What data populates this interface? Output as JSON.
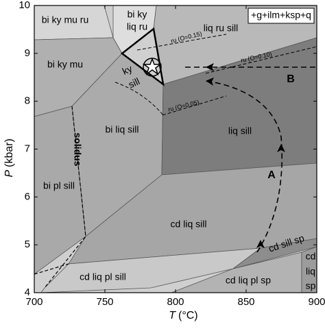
{
  "chart_data": {
    "type": "pseudosection",
    "x_label": {
      "symbol": "T",
      "unit": "(°C)"
    },
    "y_label": {
      "symbol": "P",
      "unit": "(kbar)"
    },
    "xlim": [
      700,
      900
    ],
    "xticks": [
      700,
      750,
      800,
      850,
      900
    ],
    "ylim": [
      4,
      10
    ],
    "yticks": [
      4,
      5,
      6,
      7,
      8,
      9,
      10
    ],
    "assemblage_note": "+g+ilm+ksp+q",
    "field_labels": [
      "bi ky mu ru",
      "bi ky",
      "liq ru",
      "liq ru sill",
      "bi ky mu",
      "ky",
      "sill",
      "bi liq sill",
      "liq sill",
      "bi pl sill",
      "cd liq sill",
      "cd liq pl sill",
      "cd liq pl sp",
      "cd sill sp",
      "cd",
      "liq",
      "sp"
    ],
    "solidus_label": "solidus",
    "isopleth_labels": [
      "ru (O=0.15)",
      "ru (O=0.10)",
      "ru (O=0.05)"
    ],
    "path_labels": [
      "A",
      "B"
    ]
  }
}
